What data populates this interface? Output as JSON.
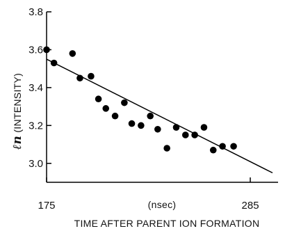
{
  "chart_data": {
    "type": "scatter",
    "title": "",
    "xlabel": "TIME AFTER PARENT ION FORMATION",
    "x_unit_label": "(nsec)",
    "ylabel_prefix": "ℓn",
    "ylabel": "(INTENSITY)",
    "xlim": [
      175,
      300
    ],
    "ylim": [
      2.9,
      3.8
    ],
    "xticks": [
      175,
      285
    ],
    "yticks": [
      3.0,
      3.2,
      3.4,
      3.6,
      3.8
    ],
    "ytick_labels": [
      "3.0",
      "3.2",
      "3.4",
      "3.6",
      "3.8"
    ],
    "xtick_labels": [
      "175",
      "285"
    ],
    "grid": false,
    "colors": {
      "points": "#000000",
      "line": "#000000",
      "axes": "#000000"
    },
    "points": [
      {
        "x": 175,
        "y": 3.6
      },
      {
        "x": 179,
        "y": 3.53
      },
      {
        "x": 189,
        "y": 3.58
      },
      {
        "x": 193,
        "y": 3.45
      },
      {
        "x": 199,
        "y": 3.46
      },
      {
        "x": 203,
        "y": 3.34
      },
      {
        "x": 207,
        "y": 3.29
      },
      {
        "x": 212,
        "y": 3.25
      },
      {
        "x": 217,
        "y": 3.32
      },
      {
        "x": 221,
        "y": 3.21
      },
      {
        "x": 226,
        "y": 3.2
      },
      {
        "x": 231,
        "y": 3.25
      },
      {
        "x": 235,
        "y": 3.18
      },
      {
        "x": 240,
        "y": 3.08
      },
      {
        "x": 245,
        "y": 3.19
      },
      {
        "x": 250,
        "y": 3.15
      },
      {
        "x": 255,
        "y": 3.15
      },
      {
        "x": 260,
        "y": 3.19
      },
      {
        "x": 265,
        "y": 3.07
      },
      {
        "x": 270,
        "y": 3.09
      },
      {
        "x": 276,
        "y": 3.09
      }
    ],
    "fit_line": [
      {
        "x": 175,
        "y": 3.55
      },
      {
        "x": 297,
        "y": 2.95
      }
    ]
  }
}
